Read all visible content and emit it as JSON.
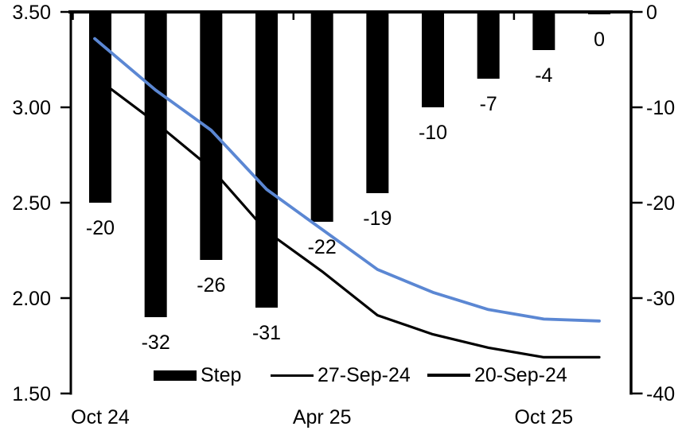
{
  "chart_data": {
    "type": "combo",
    "title": "",
    "n_points": 10,
    "series": [
      {
        "name": "Step",
        "type": "bar",
        "axis": "right",
        "color": "#000000",
        "values": [
          -20,
          -32,
          -26,
          -31,
          -22,
          -19,
          -10,
          -7,
          -4,
          0
        ],
        "data_labels": [
          "-20",
          "-32",
          "-26",
          "-31",
          "-22",
          "-19",
          "-10",
          "-7",
          "-4",
          "0"
        ]
      },
      {
        "name": "27-Sep-24",
        "type": "line",
        "axis": "left",
        "color": "#000000",
        "values": [
          3.16,
          2.92,
          2.68,
          2.35,
          2.14,
          1.91,
          1.81,
          1.74,
          1.69,
          1.69
        ]
      },
      {
        "name": "20-Sep-24",
        "type": "line",
        "axis": "left",
        "color": "#5b87d3",
        "values": [
          3.36,
          3.09,
          2.88,
          2.57,
          2.36,
          2.15,
          2.03,
          1.94,
          1.89,
          1.88
        ]
      }
    ],
    "left_axis": {
      "tick_labels": [
        "3.50",
        "3.00",
        "2.50",
        "2.00",
        "1.50"
      ],
      "min": 1.5,
      "max": 3.5
    },
    "right_axis": {
      "tick_labels": [
        "0",
        "-10",
        "-20",
        "-30",
        "-40"
      ],
      "min": -40,
      "max": 0
    },
    "x_axis": {
      "labels": [
        {
          "text": "Oct 24",
          "position": 0
        },
        {
          "text": "Apr 25",
          "position": 4
        },
        {
          "text": "Oct 25",
          "position": 8
        }
      ]
    },
    "legend": {
      "position": "bottom-inside",
      "entries": [
        "Step",
        "27-Sep-24",
        "20-Sep-24"
      ]
    },
    "grid": false,
    "colors": {
      "bar": "#000000",
      "line_27sep": "#000000",
      "line_20sep": "#5b87d3",
      "text": "#000000",
      "background": "#ffffff"
    }
  }
}
